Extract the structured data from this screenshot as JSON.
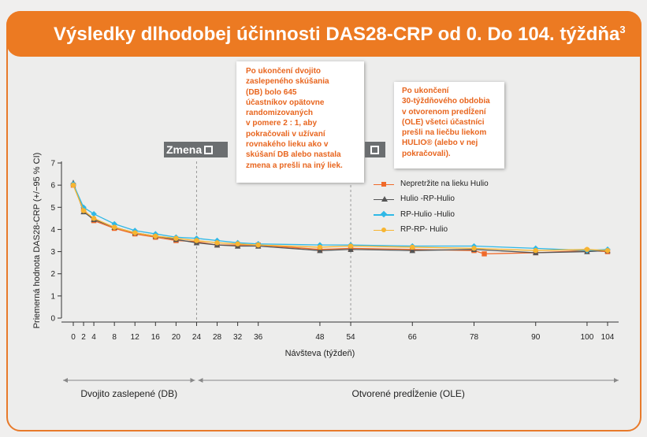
{
  "header": {
    "title": "Výsledky dlhodobej účinnosti DAS28-CRP od 0. Do 104. týždňa",
    "title_sup": "3"
  },
  "callouts": {
    "db_note_lines": [
      "Po ukončení dvojito",
      "zaslepeného skúšania",
      "(DB) bolo 645",
      "účastníkov opätovne",
      "randomizovaných",
      "v pomere 2 : 1, aby",
      "pokračovali v užívaní",
      "rovnakého lieku ako v",
      "skúšaní DB alebo nastala",
      "zmena a prešli na iný liek."
    ],
    "ole_note_lines": [
      "Po ukončení",
      "30-týždňového obdobia",
      "v otvorenom predĺžení",
      "(OLE) všetci účastníci",
      "prešli na liečbu liekom",
      "HULIO® (alebo v nej",
      "pokračovali)."
    ],
    "switch_badge_label": "Zmena"
  },
  "colors": {
    "header": "#ec7a22",
    "border": "#e87a2a",
    "callout_text": "#e8651e",
    "badge": "#6b6e70"
  },
  "icons": {
    "switch_badge": "external-link-icon"
  },
  "chart_data": {
    "type": "line",
    "ylabel": "Priemerná hodnota DAS28-CRP (+/−95 % CI)",
    "xlabel": "Návšteva (týždeň)",
    "ylim": [
      0,
      7
    ],
    "yticks": [
      0,
      1,
      2,
      3,
      4,
      5,
      6,
      7
    ],
    "xticks": [
      0,
      2,
      4,
      8,
      12,
      16,
      20,
      24,
      28,
      32,
      36,
      48,
      54,
      66,
      78,
      90,
      100,
      104
    ],
    "vertical_markers": [
      24,
      54
    ],
    "periods": [
      {
        "label": "Dvojito zaslepené (DB)",
        "from": 0,
        "to": 24
      },
      {
        "label": "Otvorené predĺženie (OLE)",
        "from": 24,
        "to": 104
      }
    ],
    "series": [
      {
        "name": "Nepretržite na lieku Hulio",
        "color": "#f06a2a",
        "marker": "square",
        "x": [
          0,
          2,
          4,
          8,
          12,
          16,
          20,
          24,
          28,
          32,
          36,
          48,
          54,
          66,
          78,
          80,
          90,
          100,
          104
        ],
        "y": [
          6.0,
          4.9,
          4.4,
          4.05,
          3.8,
          3.65,
          3.5,
          3.45,
          3.3,
          3.3,
          3.3,
          3.1,
          3.15,
          3.1,
          3.05,
          2.9,
          2.95,
          3.05,
          3.0
        ]
      },
      {
        "name": "Hulio -RP-Hulio",
        "color": "#555555",
        "marker": "triangle",
        "x": [
          0,
          2,
          4,
          8,
          12,
          16,
          20,
          24,
          28,
          32,
          36,
          48,
          54,
          66,
          78,
          90,
          100,
          104
        ],
        "y": [
          6.1,
          4.8,
          4.45,
          4.1,
          3.85,
          3.7,
          3.55,
          3.4,
          3.3,
          3.25,
          3.25,
          3.05,
          3.1,
          3.05,
          3.1,
          2.95,
          3.0,
          3.05
        ]
      },
      {
        "name": "RP-Hulio -Hulio",
        "color": "#2fb8e6",
        "marker": "diamond",
        "x": [
          0,
          2,
          4,
          8,
          12,
          16,
          20,
          24,
          28,
          32,
          36,
          48,
          54,
          66,
          78,
          90,
          100,
          104
        ],
        "y": [
          6.05,
          5.0,
          4.7,
          4.25,
          3.95,
          3.8,
          3.65,
          3.6,
          3.5,
          3.4,
          3.35,
          3.3,
          3.3,
          3.25,
          3.25,
          3.15,
          3.05,
          3.1
        ]
      },
      {
        "name": "RP-RP- Hulio",
        "color": "#f7b531",
        "marker": "circle",
        "x": [
          0,
          2,
          4,
          8,
          12,
          16,
          20,
          24,
          28,
          32,
          36,
          48,
          54,
          66,
          78,
          90,
          100,
          104
        ],
        "y": [
          6.0,
          4.85,
          4.5,
          4.1,
          3.85,
          3.7,
          3.6,
          3.5,
          3.4,
          3.35,
          3.3,
          3.2,
          3.25,
          3.2,
          3.15,
          3.05,
          3.1,
          3.05
        ]
      }
    ],
    "grid": false,
    "legend_position": "right"
  }
}
